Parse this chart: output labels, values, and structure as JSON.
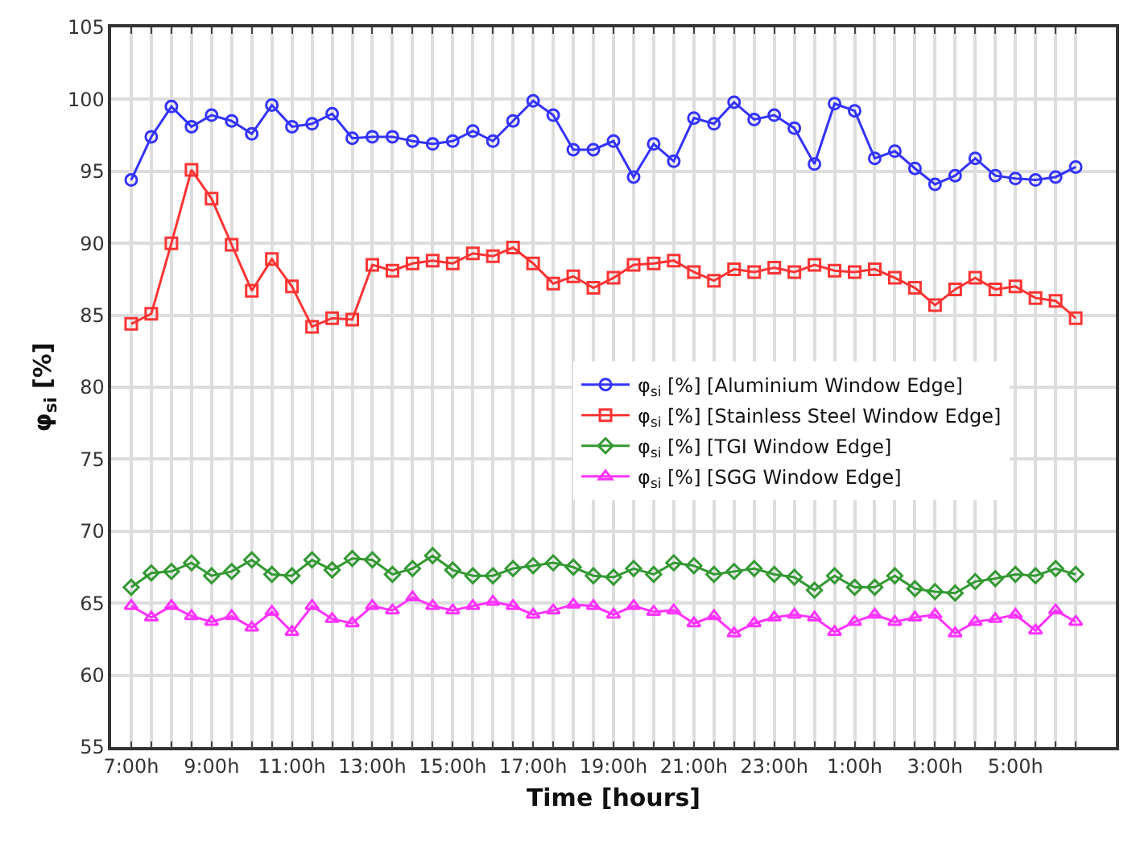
{
  "chart_data": {
    "type": "line",
    "xlabel": "Time [hours]",
    "ylabel": "φ$_{si}$ [%]",
    "categories": [
      "7:00h",
      null,
      null,
      null,
      "9:00h",
      null,
      null,
      null,
      "11:00h",
      null,
      null,
      null,
      "13:00h",
      null,
      null,
      null,
      "15:00h",
      null,
      null,
      null,
      "17:00h",
      null,
      null,
      null,
      "19:00h",
      null,
      null,
      null,
      "21:00h",
      null,
      null,
      null,
      "23:00h",
      null,
      null,
      null,
      "1:00h",
      null,
      null,
      null,
      "3:00h",
      null,
      null,
      null,
      "5:00h",
      null,
      null,
      null
    ],
    "ylim": [
      55,
      105
    ],
    "yticks": [
      55,
      60,
      65,
      70,
      75,
      80,
      85,
      90,
      95,
      100,
      105
    ],
    "grid": true,
    "legend": "right",
    "series": [
      {
        "name": "φ$_{si}$ [%] [Aluminium Window Edge]",
        "color": "#3333ff",
        "marker": "circle",
        "values": [
          94.4,
          97.4,
          99.5,
          98.1,
          98.9,
          98.5,
          97.6,
          99.6,
          98.1,
          98.3,
          99.0,
          97.3,
          97.4,
          97.4,
          97.1,
          96.9,
          97.1,
          97.8,
          97.1,
          98.5,
          99.9,
          98.9,
          96.5,
          96.5,
          97.1,
          94.6,
          96.9,
          95.7,
          98.7,
          98.3,
          99.8,
          98.6,
          98.9,
          98.0,
          95.5,
          99.7,
          99.2,
          95.9,
          96.4,
          95.2,
          94.1,
          94.7,
          95.9,
          94.7,
          94.5,
          94.4,
          94.6,
          95.3
        ]
      },
      {
        "name": "φ$_{si}$ [%] [Stainless Steel Window Edge]",
        "color": "#ff3333",
        "marker": "square",
        "values": [
          84.4,
          85.1,
          90.0,
          95.1,
          93.1,
          89.9,
          86.7,
          88.9,
          87.0,
          84.2,
          84.8,
          84.7,
          88.5,
          88.1,
          88.6,
          88.8,
          88.6,
          89.3,
          89.1,
          89.7,
          88.6,
          87.2,
          87.7,
          86.9,
          87.6,
          88.5,
          88.6,
          88.8,
          88.0,
          87.4,
          88.2,
          88.0,
          88.3,
          88.0,
          88.5,
          88.1,
          88.0,
          88.2,
          87.6,
          86.9,
          85.7,
          86.8,
          87.6,
          86.8,
          87.0,
          86.2,
          86.0,
          84.8
        ]
      },
      {
        "name": "φ$_{si}$ [%] [TGI Window Edge]",
        "color": "#339933",
        "marker": "diamond",
        "values": [
          66.1,
          67.1,
          67.2,
          67.8,
          66.9,
          67.2,
          68.0,
          67.0,
          66.9,
          68.0,
          67.3,
          68.1,
          68.0,
          67.0,
          67.4,
          68.3,
          67.3,
          66.9,
          66.9,
          67.4,
          67.6,
          67.8,
          67.5,
          66.9,
          66.8,
          67.4,
          67.0,
          67.8,
          67.6,
          67.0,
          67.2,
          67.4,
          67.0,
          66.8,
          65.9,
          66.9,
          66.1,
          66.1,
          66.9,
          66.0,
          65.8,
          65.7,
          66.5,
          66.7,
          67.0,
          66.9,
          67.4,
          67.0
        ]
      },
      {
        "name": "φ$_{si}$ [%] [SGG Window Edge]",
        "color": "#ff33ff",
        "marker": "triangle",
        "values": [
          64.8,
          64.0,
          64.8,
          64.1,
          63.7,
          64.1,
          63.3,
          64.4,
          63.0,
          64.8,
          63.9,
          63.6,
          64.8,
          64.5,
          65.4,
          64.8,
          64.5,
          64.8,
          65.1,
          64.8,
          64.2,
          64.5,
          64.9,
          64.8,
          64.2,
          64.8,
          64.4,
          64.5,
          63.6,
          64.1,
          62.9,
          63.6,
          64.0,
          64.2,
          64.0,
          63.0,
          63.7,
          64.2,
          63.7,
          64.0,
          64.2,
          62.9,
          63.7,
          63.9,
          64.2,
          63.1,
          64.5,
          63.7
        ]
      }
    ]
  }
}
